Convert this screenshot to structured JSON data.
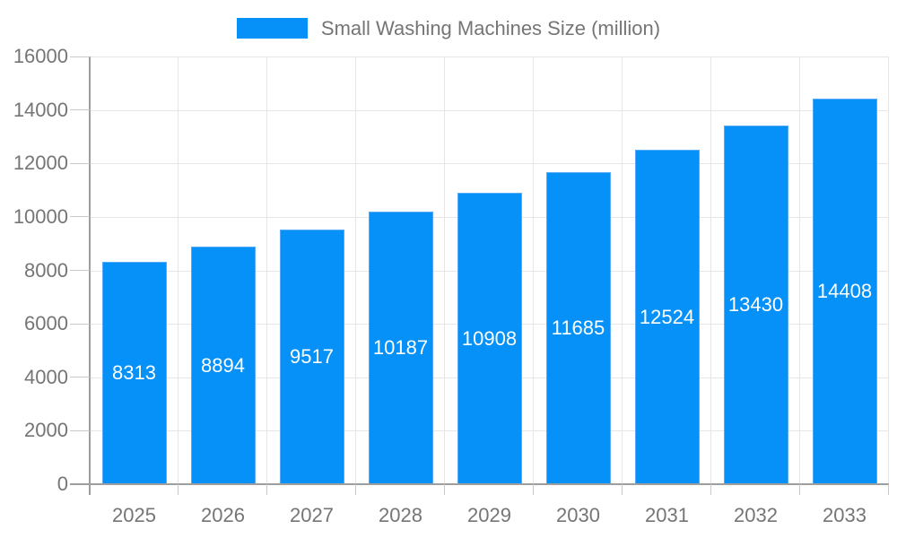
{
  "legend": {
    "label": "Small Washing Machines Size (million)"
  },
  "chart_data": {
    "type": "bar",
    "title": "Small Washing Machines Size (million)",
    "categories": [
      "2025",
      "2026",
      "2027",
      "2028",
      "2029",
      "2030",
      "2031",
      "2032",
      "2033"
    ],
    "series": [
      {
        "name": "Small Washing Machines Size (million)",
        "values": [
          8313,
          8894,
          9517,
          10187,
          10908,
          11685,
          12524,
          13430,
          14408
        ]
      }
    ],
    "bar_value_labels": [
      "8313",
      "8894",
      "9517",
      "10187",
      "10908",
      "11685",
      "12524",
      "13430",
      "14408"
    ],
    "xlabel": "",
    "ylabel": "",
    "ylim": [
      0,
      16000
    ],
    "ytick_step": 2000,
    "ytick_labels": [
      "0",
      "2000",
      "4000",
      "6000",
      "8000",
      "10000",
      "12000",
      "14000",
      "16000"
    ],
    "grid": true,
    "legend_position": "top",
    "colors": {
      "bar_fill": "#0591f7",
      "bar_border": "#55abf7",
      "axis_line": "#9e9e9e",
      "gridline": "#e6e6e6",
      "tick": "#c9c9c9",
      "tick_label": "#757575",
      "bar_label": "#ffffff",
      "legend_text": "#757575",
      "background": "#ffffff"
    }
  }
}
